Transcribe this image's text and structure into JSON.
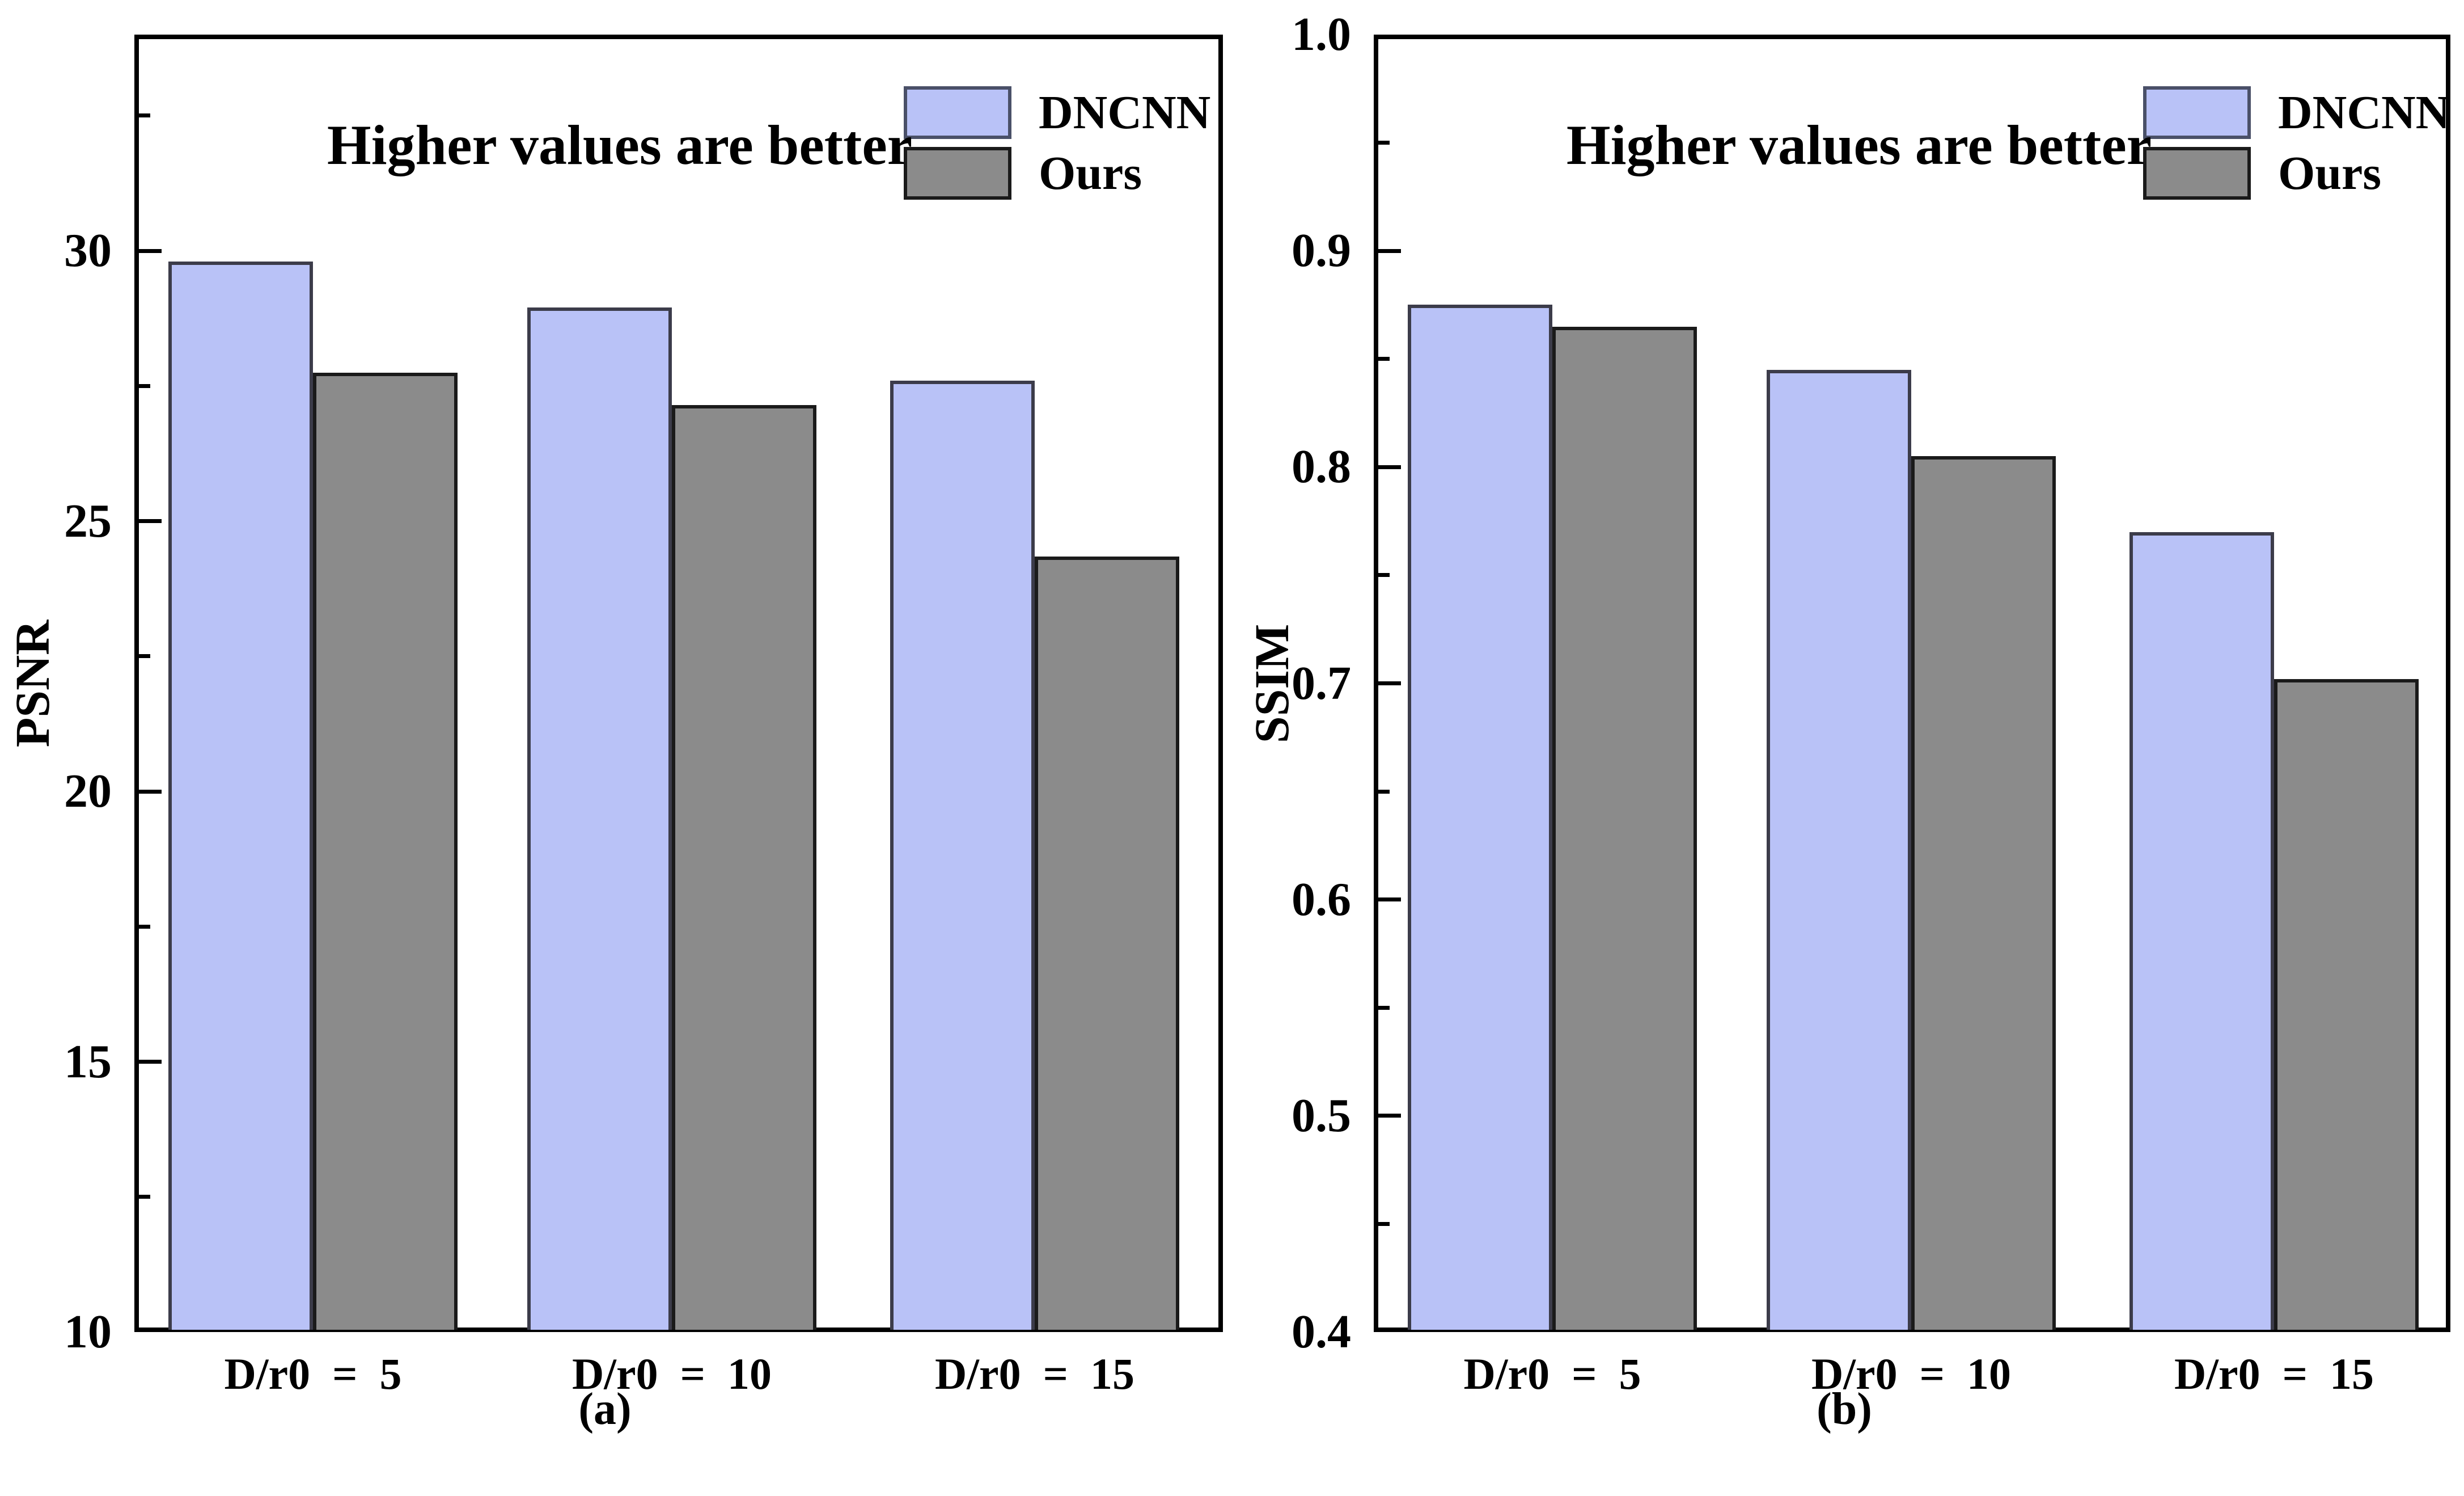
{
  "chart_data": [
    {
      "type": "bar",
      "panel": "a",
      "caption": "(a)",
      "annotation": "Higher values are better",
      "title": "",
      "xlabel": "",
      "ylabel": "PSNR",
      "categories": [
        "D/r0  =  5",
        "D/r0  =  10",
        "D/r0  =  15"
      ],
      "series": [
        {
          "name": "DNCNN",
          "values": [
            29.8,
            28.95,
            27.6
          ],
          "fill": "#b9c2f7",
          "border": "#3c3c4a"
        },
        {
          "name": "Ours",
          "values": [
            27.75,
            27.15,
            24.35
          ],
          "fill": "#8b8b8b",
          "border": "#1a1a1a"
        }
      ],
      "ylim": [
        10,
        34
      ],
      "y_ticks": [
        {
          "v": 10,
          "label": "10"
        },
        {
          "v": 15,
          "label": "15"
        },
        {
          "v": 20,
          "label": "20"
        },
        {
          "v": 25,
          "label": "25"
        },
        {
          "v": 30,
          "label": "30"
        }
      ],
      "y_minor": [
        12.5,
        17.5,
        22.5,
        27.5,
        32.5
      ],
      "grid": false,
      "legend_position": "top-right"
    },
    {
      "type": "bar",
      "panel": "b",
      "caption": "(b)",
      "annotation": "Higher values are better",
      "title": "",
      "xlabel": "",
      "ylabel": "SSIM",
      "categories": [
        "D/r0  =  5",
        "D/r0  =  10",
        "D/r0  =  15"
      ],
      "series": [
        {
          "name": "DNCNN",
          "values": [
            0.875,
            0.845,
            0.77
          ],
          "fill": "#b9c2f7",
          "border": "#3c3c4a"
        },
        {
          "name": "Ours",
          "values": [
            0.865,
            0.805,
            0.702
          ],
          "fill": "#8b8b8b",
          "border": "#1a1a1a"
        }
      ],
      "ylim": [
        0.4,
        1.0
      ],
      "y_ticks": [
        {
          "v": 0.4,
          "label": "0.4"
        },
        {
          "v": 0.5,
          "label": "0.5"
        },
        {
          "v": 0.6,
          "label": "0.6"
        },
        {
          "v": 0.7,
          "label": "0.7"
        },
        {
          "v": 0.8,
          "label": "0.8"
        },
        {
          "v": 0.9,
          "label": "0.9"
        },
        {
          "v": 1.0,
          "label": "1.0"
        }
      ],
      "y_minor": [
        0.45,
        0.55,
        0.65,
        0.75,
        0.85,
        0.95
      ],
      "grid": false,
      "legend_position": "top-right"
    }
  ]
}
